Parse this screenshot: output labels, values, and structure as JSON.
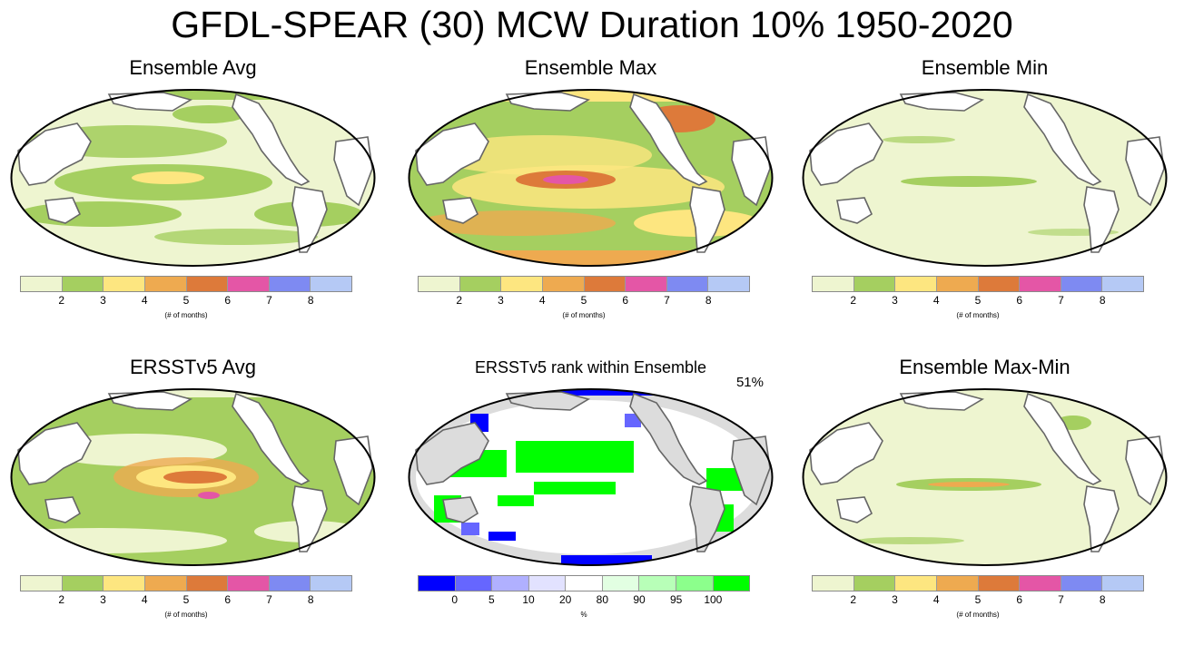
{
  "title": "GFDL-SPEAR (30) MCW Duration 10% 1950-2020",
  "colorbar_months": {
    "colors": [
      "#eef5d0",
      "#a5cf60",
      "#fde680",
      "#eeaa50",
      "#dd7a3a",
      "#e456a6",
      "#7e8af2",
      "#b5c9f5"
    ],
    "ticks": [
      "2",
      "3",
      "4",
      "5",
      "6",
      "7",
      "8"
    ],
    "units": "(# of months)"
  },
  "colorbar_rank": {
    "colors": [
      "#0000ff",
      "#6666ff",
      "#b0b0ff",
      "#e2e2ff",
      "#ffffff",
      "#e2ffe2",
      "#b8ffb8",
      "#8cff8c",
      "#00ff00"
    ],
    "ticks": [
      "0",
      "5",
      "10",
      "20",
      "80",
      "90",
      "95",
      "100"
    ],
    "units": "%"
  },
  "panels": [
    {
      "id": "ensemble-avg",
      "title": "Ensemble Avg"
    },
    {
      "id": "ensemble-max",
      "title": "Ensemble Max"
    },
    {
      "id": "ensemble-min",
      "title": "Ensemble Min"
    },
    {
      "id": "ersst-avg",
      "title": "ERSSTv5 Avg"
    },
    {
      "id": "ersst-rank",
      "title": "ERSSTv5 rank within Ensemble",
      "note": "51%"
    },
    {
      "id": "ensemble-max-min",
      "title": "Ensemble Max-Min"
    }
  ]
}
